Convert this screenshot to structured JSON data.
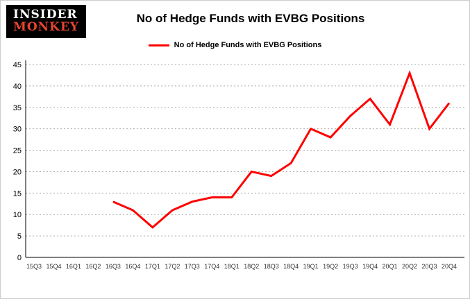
{
  "logo": {
    "line1": "INSIDER",
    "line2": "MONKEY"
  },
  "title": "No of Hedge Funds with EVBG Positions",
  "legend_label": "No of Hedge Funds with EVBG Positions",
  "colors": {
    "line": "#ff0000",
    "grid": "#aaaaaa",
    "axis": "#000000",
    "y_tick_text": "#000000",
    "x_tick_text": "#333333"
  },
  "chart_data": {
    "type": "line",
    "title": "No of Hedge Funds with EVBG Positions",
    "xlabel": "",
    "ylabel": "",
    "categories": [
      "15Q3",
      "15Q4",
      "16Q1",
      "16Q2",
      "16Q3",
      "16Q4",
      "17Q1",
      "17Q2",
      "17Q3",
      "17Q4",
      "18Q1",
      "18Q2",
      "18Q3",
      "18Q4",
      "19Q1",
      "19Q2",
      "19Q3",
      "19Q4",
      "20Q1",
      "20Q2",
      "20Q3",
      "20Q4"
    ],
    "series": [
      {
        "name": "No of Hedge Funds with EVBG Positions",
        "values": [
          null,
          null,
          null,
          null,
          13,
          11,
          7,
          11,
          13,
          14,
          14,
          20,
          19,
          22,
          30,
          28,
          33,
          37,
          31,
          43,
          30,
          36
        ]
      }
    ],
    "ylim": [
      0,
      45
    ],
    "yticks": [
      0,
      5,
      10,
      15,
      20,
      25,
      30,
      35,
      40,
      45
    ],
    "grid": "dotted-horizontal",
    "legend_position": "top-center"
  }
}
